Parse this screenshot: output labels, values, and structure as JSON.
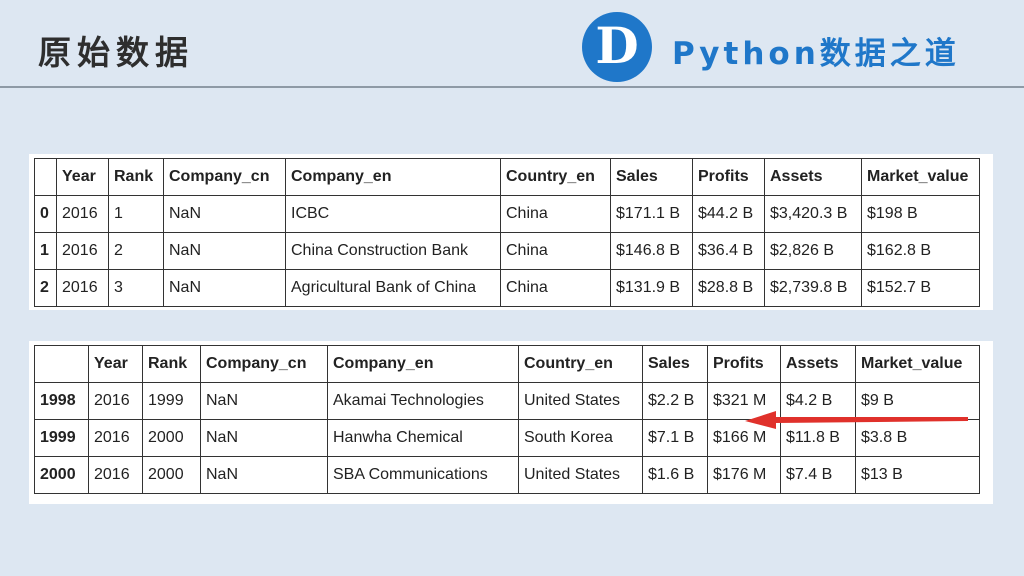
{
  "header": {
    "title": "原始数据",
    "logo_letter": "D",
    "brand_text": "Python数据之道"
  },
  "table_top": {
    "columns": [
      "",
      "Year",
      "Rank",
      "Company_cn",
      "Company_en",
      "Country_en",
      "Sales",
      "Profits",
      "Assets",
      "Market_value"
    ],
    "rows": [
      [
        "0",
        "2016",
        "1",
        "NaN",
        "ICBC",
        "China",
        "$171.1 B",
        "$44.2 B",
        "$3,420.3 B",
        "$198 B"
      ],
      [
        "1",
        "2016",
        "2",
        "NaN",
        "China Construction Bank",
        "China",
        "$146.8 B",
        "$36.4 B",
        "$2,826 B",
        "$162.8 B"
      ],
      [
        "2",
        "2016",
        "3",
        "NaN",
        "Agricultural Bank of China",
        "China",
        "$131.9 B",
        "$28.8 B",
        "$2,739.8 B",
        "$152.7 B"
      ]
    ]
  },
  "table_bottom": {
    "columns": [
      "",
      "Year",
      "Rank",
      "Company_cn",
      "Company_en",
      "Country_en",
      "Sales",
      "Profits",
      "Assets",
      "Market_value"
    ],
    "rows": [
      [
        "1998",
        "2016",
        "1999",
        "NaN",
        "Akamai Technologies",
        "United States",
        "$2.2 B",
        "$321 M",
        "$4.2 B",
        "$9 B"
      ],
      [
        "1999",
        "2016",
        "2000",
        "NaN",
        "Hanwha Chemical",
        "South Korea",
        "$7.1 B",
        "$166 M",
        "$11.8 B",
        "$3.8 B"
      ],
      [
        "2000",
        "2016",
        "2000",
        "NaN",
        "SBA Communications",
        "United States",
        "$1.6 B",
        "$176 M",
        "$7.4 B",
        "$13 B"
      ]
    ]
  },
  "colors": {
    "brand": "#1f77c9",
    "arrow": "#e0312b",
    "background": "#dde7f2"
  }
}
